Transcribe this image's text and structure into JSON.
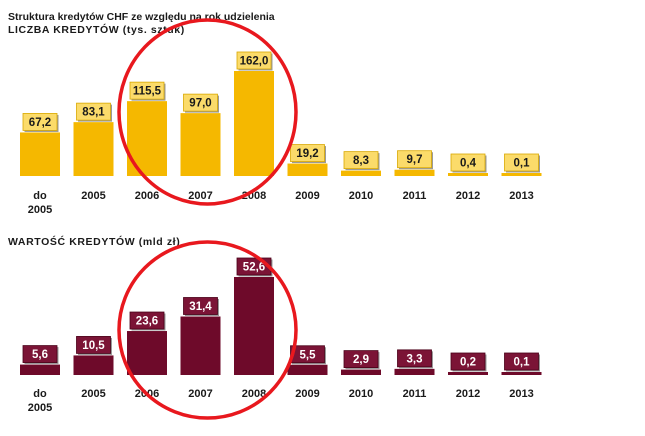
{
  "header": {
    "title": "Struktura kredytów CHF  ze względu  na rok udzielenia",
    "count_title": "LICZBA  KREDYTÓW  (tys. sztuk)",
    "value_title": "WARTOŚĆ  KREDYTÓW  (mld  zł)"
  },
  "colors": {
    "count_bar": "#F5B800",
    "count_label_box": "#FBDB6A",
    "value_bar": "#6E0A2A",
    "value_label_box": "#7B1436",
    "highlight_ring": "#E8181E"
  },
  "chart_data": [
    {
      "type": "bar",
      "title": "LICZBA  KREDYTÓW  (tys. sztuk)",
      "categories": [
        "do 2005",
        "2005",
        "2006",
        "2007",
        "2008",
        "2009",
        "2010",
        "2011",
        "2012",
        "2013"
      ],
      "values": [
        67.2,
        83.1,
        115.5,
        97.0,
        162.0,
        19.2,
        8.3,
        9.7,
        0.4,
        0.1
      ],
      "labels": [
        "67,2",
        "83,1",
        "115,5",
        "97,0",
        "162,0",
        "19,2",
        "8,3",
        "9,7",
        "0,4",
        "0,1"
      ],
      "ylim": [
        0,
        162
      ],
      "highlighted_categories": [
        "2006",
        "2007",
        "2008"
      ]
    },
    {
      "type": "bar",
      "title": "WARTOŚĆ  KREDYTÓW  (mld  zł)",
      "categories": [
        "do 2005",
        "2005",
        "2006",
        "2007",
        "2008",
        "2009",
        "2010",
        "2011",
        "2012",
        "2013"
      ],
      "values": [
        5.6,
        10.5,
        23.6,
        31.4,
        52.6,
        5.5,
        2.9,
        3.3,
        0.2,
        0.1
      ],
      "labels": [
        "5,6",
        "10,5",
        "23,6",
        "31,4",
        "52,6",
        "5,5",
        "2,9",
        "3,3",
        "0,2",
        "0,1"
      ],
      "ylim": [
        0,
        52.6
      ],
      "highlighted_categories": [
        "2006",
        "2007",
        "2008"
      ]
    }
  ]
}
